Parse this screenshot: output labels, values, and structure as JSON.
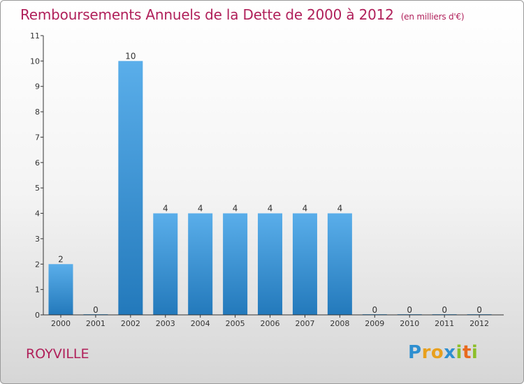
{
  "chart_data": {
    "type": "bar",
    "title": "Remboursements Annuels de la Dette de 2000 à 2012",
    "subtitle": "(en milliers d'€)",
    "categories": [
      "2000",
      "2001",
      "2002",
      "2003",
      "2004",
      "2005",
      "2006",
      "2007",
      "2008",
      "2009",
      "2010",
      "2011",
      "2012"
    ],
    "values": [
      2,
      0,
      10,
      4,
      4,
      4,
      4,
      4,
      4,
      0,
      0,
      0,
      0
    ],
    "y_ticks": [
      0,
      1,
      2,
      3,
      4,
      5,
      6,
      7,
      8,
      9,
      10,
      11
    ],
    "ylim": [
      0,
      11
    ],
    "xlabel": "",
    "ylabel": "",
    "bar_color_top": "#5aaeea",
    "bar_color_bottom": "#2379bb"
  },
  "commune": "ROYVILLE",
  "logo": {
    "text": "Proxiti",
    "letters": [
      {
        "char": "P",
        "color": "#2e8fd0"
      },
      {
        "char": "r",
        "color": "#e8a01e"
      },
      {
        "char": "o",
        "color": "#e8a01e"
      },
      {
        "char": "x",
        "color": "#2e8fd0"
      },
      {
        "char": "i",
        "color": "#8cbf2a"
      },
      {
        "char": "t",
        "color": "#e86a1e"
      },
      {
        "char": "i",
        "color": "#8cbf2a"
      }
    ]
  },
  "colors": {
    "title": "#b0205a",
    "axis": "#333333"
  }
}
